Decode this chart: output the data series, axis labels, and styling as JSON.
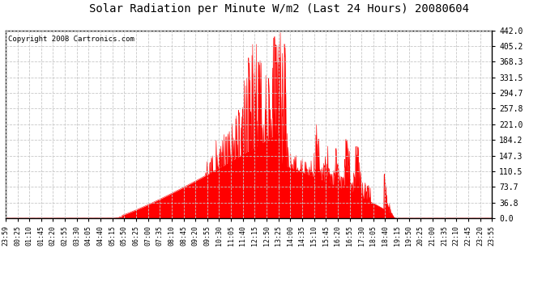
{
  "title": "Solar Radiation per Minute W/m2 (Last 24 Hours) 20080604",
  "copyright_text": "Copyright 2008 Cartronics.com",
  "background_color": "#ffffff",
  "plot_bg_color": "#ffffff",
  "fill_color": "#ff0000",
  "line_color": "#ff0000",
  "grid_color": "#c8c8c8",
  "dashed_line_color": "#ff0000",
  "ylim": [
    0.0,
    442.0
  ],
  "yticks": [
    0.0,
    36.8,
    73.7,
    110.5,
    147.3,
    184.2,
    221.0,
    257.8,
    294.7,
    331.5,
    368.3,
    405.2,
    442.0
  ],
  "xtick_labels": [
    "23:59",
    "00:25",
    "01:10",
    "01:45",
    "02:20",
    "02:55",
    "03:30",
    "04:05",
    "04:40",
    "05:15",
    "05:50",
    "06:25",
    "07:00",
    "07:35",
    "08:10",
    "08:45",
    "09:20",
    "09:55",
    "10:30",
    "11:05",
    "11:40",
    "12:15",
    "12:50",
    "13:25",
    "14:00",
    "14:35",
    "15:10",
    "15:45",
    "16:20",
    "16:55",
    "17:30",
    "18:05",
    "18:40",
    "19:15",
    "19:50",
    "20:25",
    "21:00",
    "21:35",
    "22:10",
    "22:45",
    "23:20",
    "23:55"
  ],
  "n_points": 1440
}
